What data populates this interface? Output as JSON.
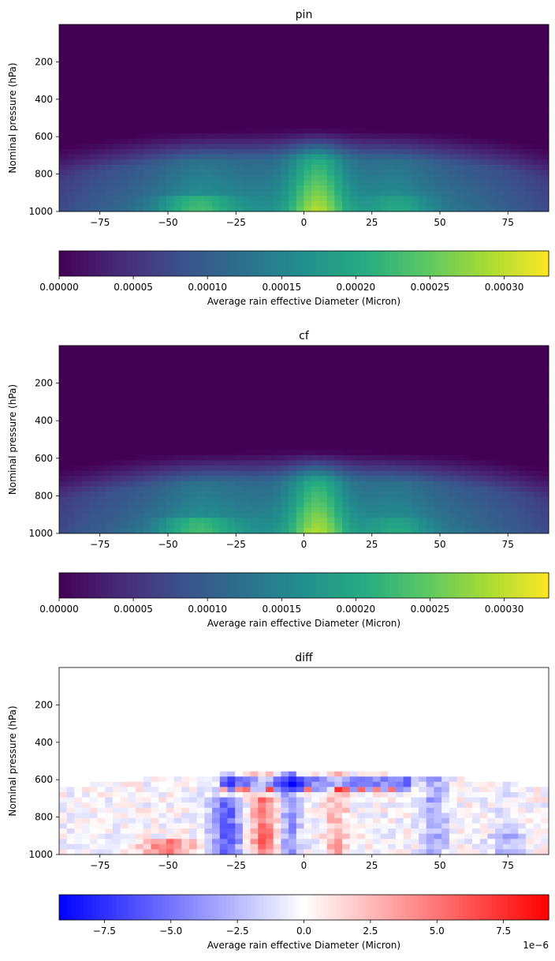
{
  "chart_data": [
    {
      "type": "heatmap",
      "title": "pin",
      "ylabel": "Nominal pressure (hPa)",
      "xlabel": "",
      "x_range": [
        -90,
        90
      ],
      "y_range": [
        1000,
        0
      ],
      "x_ticks": [
        -75,
        -50,
        -25,
        0,
        25,
        50,
        75
      ],
      "y_ticks": [
        200,
        400,
        600,
        800,
        1000
      ],
      "colormap": "viridis",
      "colorbar": {
        "label": "Average rain effective Diameter (Micron)",
        "range": [
          0,
          0.00033
        ],
        "ticks": [
          "0.00000",
          "0.00005",
          "0.00010",
          "0.00015",
          "0.00020",
          "0.00025",
          "0.00030"
        ],
        "tick_values": [
          0,
          5e-05,
          0.0001,
          0.00015,
          0.0002,
          0.00025,
          0.0003
        ],
        "offset_text": ""
      }
    },
    {
      "type": "heatmap",
      "title": "cf",
      "ylabel": "Nominal pressure (hPa)",
      "xlabel": "",
      "x_range": [
        -90,
        90
      ],
      "y_range": [
        1000,
        0
      ],
      "x_ticks": [
        -75,
        -50,
        -25,
        0,
        25,
        50,
        75
      ],
      "y_ticks": [
        200,
        400,
        600,
        800,
        1000
      ],
      "colormap": "viridis",
      "colorbar": {
        "label": "Average rain effective Diameter (Micron)",
        "range": [
          0,
          0.00033
        ],
        "ticks": [
          "0.00000",
          "0.00005",
          "0.00010",
          "0.00015",
          "0.00020",
          "0.00025",
          "0.00030"
        ],
        "tick_values": [
          0,
          5e-05,
          0.0001,
          0.00015,
          0.0002,
          0.00025,
          0.0003
        ],
        "offset_text": ""
      }
    },
    {
      "type": "heatmap",
      "title": "diff",
      "ylabel": "Nominal pressure (hPa)",
      "xlabel": "",
      "x_range": [
        -90,
        90
      ],
      "y_range": [
        1000,
        0
      ],
      "x_ticks": [
        -75,
        -50,
        -25,
        0,
        25,
        50,
        75
      ],
      "y_ticks": [
        200,
        400,
        600,
        800,
        1000
      ],
      "colormap": "bwr",
      "colorbar": {
        "label": "Average rain effective Diameter (Micron)",
        "range": [
          -9.2e-06,
          9.2e-06
        ],
        "ticks": [
          "−7.5",
          "−5.0",
          "−2.5",
          "0.0",
          "2.5",
          "5.0",
          "7.5"
        ],
        "tick_values": [
          -7.5e-06,
          -5e-06,
          -2.5e-06,
          0,
          2.5e-06,
          5e-06,
          7.5e-06
        ],
        "offset_text": "1e−6"
      }
    }
  ]
}
